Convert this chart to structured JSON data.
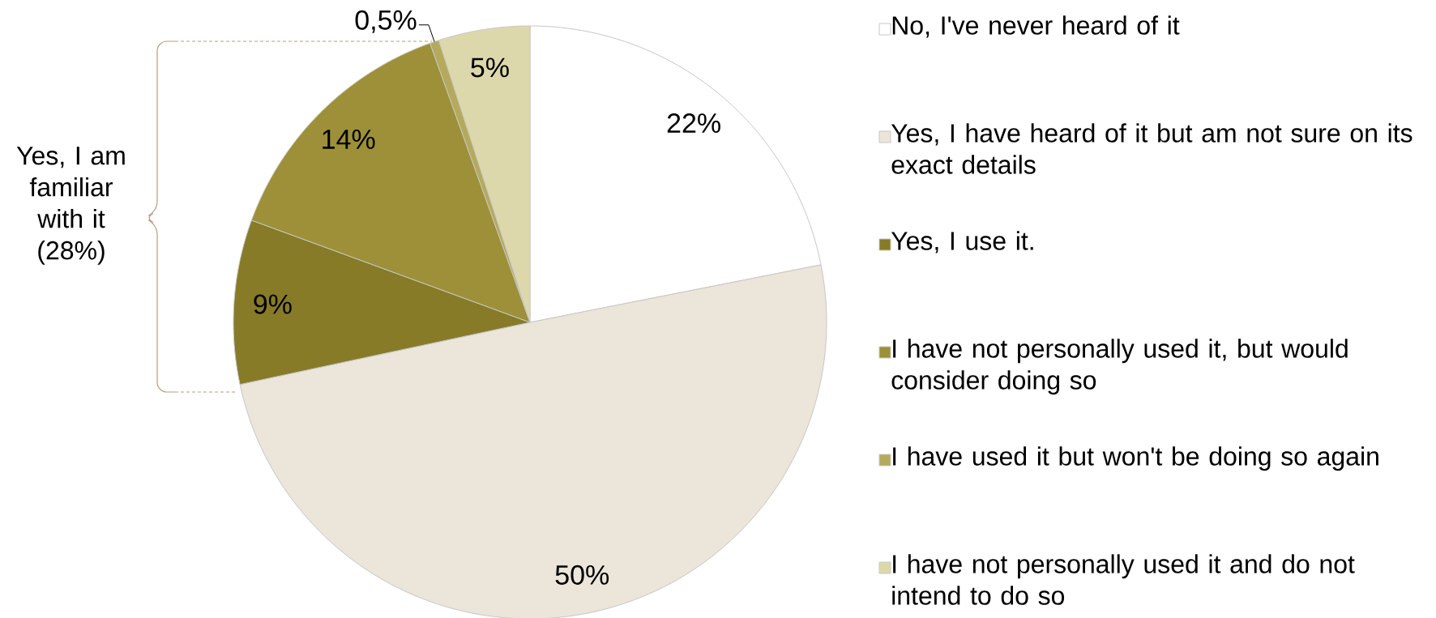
{
  "chart_data": {
    "type": "pie",
    "categories": [
      "No, I've never heard of it",
      "Yes, I have heard of it but am not sure on its exact details",
      "Yes, I use it.",
      "I have not personally used it, but would consider doing so",
      "I have used it but won't be doing so again",
      "I have not personally used it and do not intend to do so"
    ],
    "values": [
      22,
      50,
      9,
      14,
      0.5,
      5
    ],
    "colors": [
      "#ffffff",
      "#ebe5da",
      "#877b28",
      "#9d9038",
      "#b5aa5c",
      "#ddd8ab"
    ],
    "value_labels": [
      "22%",
      "50%",
      "9%",
      "14%",
      "0,5%",
      "5%"
    ],
    "annotations": [
      "Yes, I am familiar with it (28%)"
    ],
    "legend": "right"
  }
}
